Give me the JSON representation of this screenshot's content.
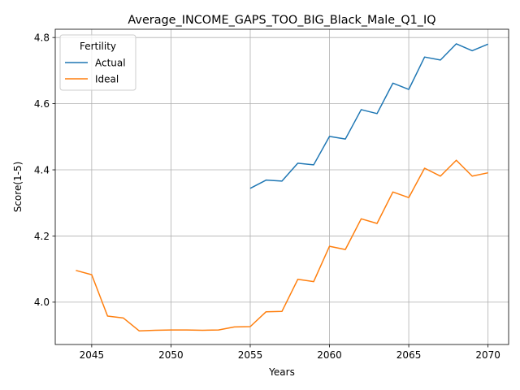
{
  "chart_data": {
    "type": "line",
    "title": "Average_INCOME_GAPS_TOO_BIG_Black_Male_Q1_IQ",
    "xlabel": "Years",
    "ylabel": "Score(1-5)",
    "xlim": [
      2042.7,
      2071.3
    ],
    "ylim": [
      3.872,
      4.825
    ],
    "xticks": [
      2045,
      2050,
      2055,
      2060,
      2065,
      2070
    ],
    "yticks": [
      4.0,
      4.2,
      4.4,
      4.6,
      4.8
    ],
    "ytick_labels": [
      "4.0",
      "4.2",
      "4.4",
      "4.6",
      "4.8"
    ],
    "grid": true,
    "legend": {
      "title": "Fertility",
      "position": "upper-left"
    },
    "series": [
      {
        "name": "Actual",
        "color": "#1f77b4",
        "x": [
          2055,
          2056,
          2057,
          2058,
          2059,
          2060,
          2061,
          2062,
          2063,
          2064,
          2065,
          2066,
          2067,
          2068,
          2069,
          2070
        ],
        "y": [
          4.344,
          4.369,
          4.366,
          4.42,
          4.415,
          4.501,
          4.493,
          4.582,
          4.57,
          4.662,
          4.643,
          4.741,
          4.732,
          4.781,
          4.76,
          4.78
        ]
      },
      {
        "name": "Ideal",
        "color": "#ff7f0e",
        "x": [
          2044,
          2045,
          2046,
          2047,
          2048,
          2049,
          2050,
          2051,
          2052,
          2053,
          2054,
          2055,
          2056,
          2057,
          2058,
          2059,
          2060,
          2061,
          2062,
          2063,
          2064,
          2065,
          2066,
          2067,
          2068,
          2069,
          2070
        ],
        "y": [
          4.096,
          4.083,
          3.958,
          3.952,
          3.913,
          3.915,
          3.916,
          3.916,
          3.915,
          3.916,
          3.925,
          3.926,
          3.971,
          3.972,
          4.069,
          4.062,
          4.169,
          4.159,
          4.252,
          4.238,
          4.333,
          4.316,
          4.405,
          4.381,
          4.429,
          4.381,
          4.391
        ]
      }
    ]
  }
}
